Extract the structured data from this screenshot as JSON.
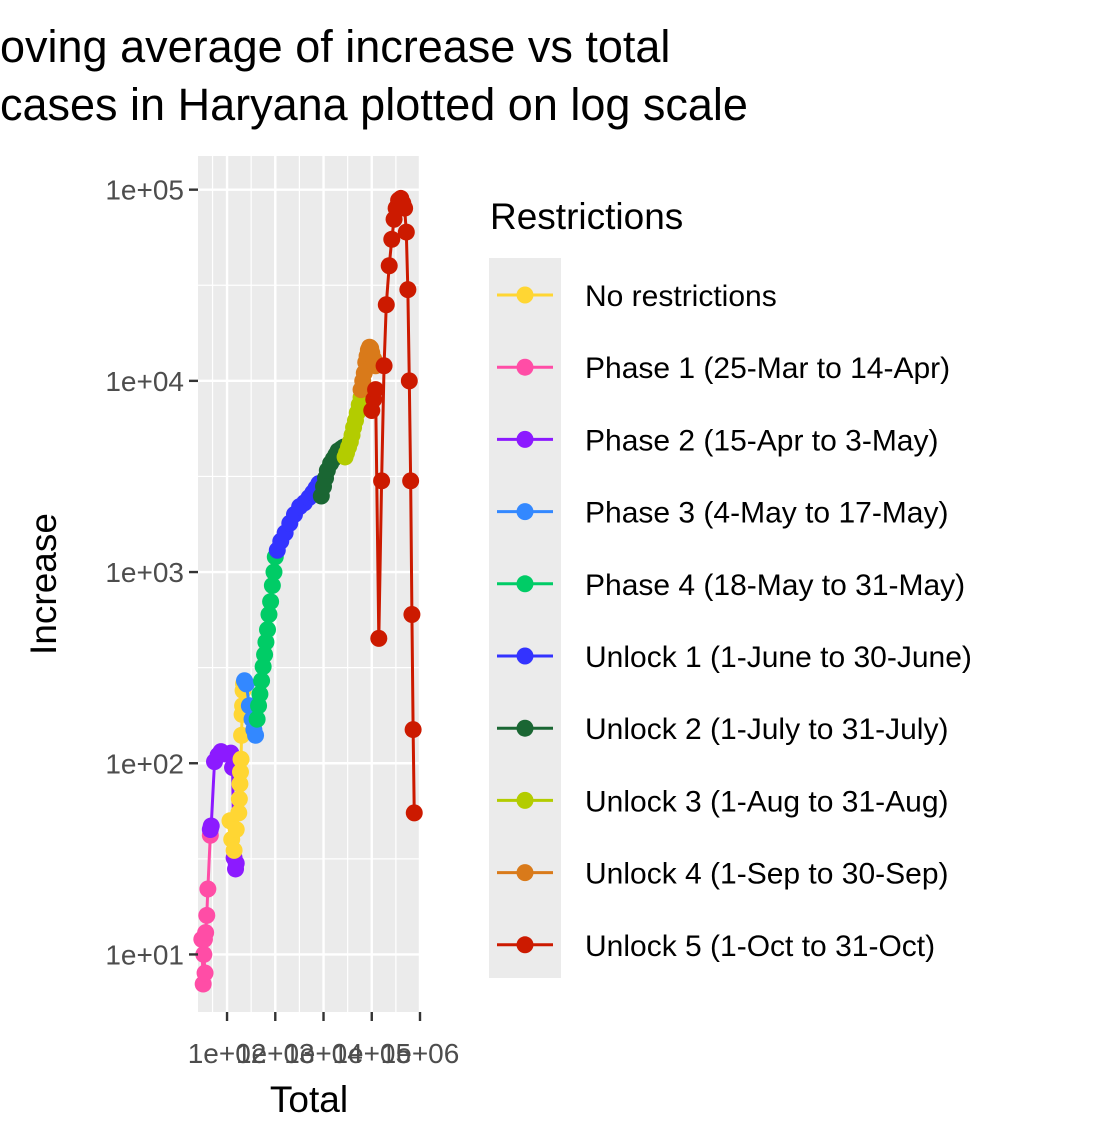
{
  "chart_data": {
    "type": "line",
    "title_lines": [
      "oving average of increase vs total",
      "cases in Haryana plotted on log scale"
    ],
    "xlabel": "Total",
    "ylabel": "Increase",
    "x_scale": "log10",
    "y_scale": "log10",
    "xlim": [
      25,
      1000000
    ],
    "ylim": [
      5,
      150000
    ],
    "x_ticks": [
      100,
      1000,
      10000,
      100000,
      1000000
    ],
    "x_tick_labels": [
      "1e+02",
      "1e+03",
      "1e+04",
      "1e+05",
      "1e+06"
    ],
    "y_ticks": [
      10,
      100,
      1000,
      10000,
      100000
    ],
    "y_tick_labels": [
      "1e+01",
      "1e+02",
      "1e+03",
      "1e+04",
      "1e+05"
    ],
    "grid": true,
    "legend_position": "right",
    "legend": {
      "title": "Restrictions",
      "items": [
        {
          "label": "No restrictions",
          "color": "#FFD633"
        },
        {
          "label": "Phase 1 (25-Mar to 14-Apr)",
          "color": "#FF4DA6"
        },
        {
          "label": "Phase 2 (15-Apr to 3-May)",
          "color": "#8C1AFF"
        },
        {
          "label": "Phase 3 (4-May to 17-May)",
          "color": "#3388FF"
        },
        {
          "label": "Phase 4 (18-May to 31-May)",
          "color": "#00CC66"
        },
        {
          "label": "Unlock 1 (1-June to 30-June)",
          "color": "#3333FF"
        },
        {
          "label": "Unlock 2 (1-July to 31-July)",
          "color": "#1A6633"
        },
        {
          "label": "Unlock 3 (1-Aug to 31-Aug)",
          "color": "#B3CC00"
        },
        {
          "label": "Unlock 4 (1-Sep to 30-Sep)",
          "color": "#D97A1A"
        },
        {
          "label": "Unlock 5 (1-Oct to 31-Oct)",
          "color": "#CC1A00"
        }
      ]
    },
    "series": [
      {
        "name": "Phase 1 (25-Mar to 14-Apr)",
        "color": "#FF4DA6",
        "x": [
          30,
          32,
          35,
          33,
          34,
          36,
          38,
          40,
          45
        ],
        "y": [
          12,
          7,
          8,
          10,
          12,
          13,
          16,
          22,
          42
        ]
      },
      {
        "name": "Phase 2 (15-Apr to 3-May)",
        "color": "#8C1AFF",
        "x": [
          45,
          47,
          55,
          65,
          75,
          90,
          120,
          130,
          140,
          150,
          155
        ],
        "y": [
          45,
          47,
          102,
          110,
          115,
          112,
          113,
          95,
          32,
          28,
          30
        ]
      },
      {
        "name": "No restrictions",
        "color": "#FFD633",
        "x": [
          115,
          125,
          140,
          155,
          175,
          180,
          185,
          190,
          195,
          200,
          205,
          210,
          215,
          220
        ],
        "y": [
          50,
          40,
          35,
          45,
          55,
          65,
          78,
          90,
          105,
          140,
          180,
          200,
          240,
          260
        ]
      },
      {
        "name": "Phase 3 (4-May to 17-May)",
        "color": "#3388FF",
        "x": [
          230,
          250,
          290,
          330,
          360,
          390
        ],
        "y": [
          270,
          260,
          200,
          170,
          150,
          140
        ]
      },
      {
        "name": "Phase 4 (18-May to 31-May)",
        "color": "#00CC66",
        "x": [
          420,
          450,
          480,
          520,
          560,
          600,
          640,
          690,
          740,
          800,
          870,
          940,
          1000
        ],
        "y": [
          170,
          200,
          230,
          270,
          320,
          370,
          430,
          500,
          600,
          700,
          850,
          1000,
          1200
        ]
      },
      {
        "name": "Unlock 1 (1-June to 30-June)",
        "color": "#3333FF",
        "x": [
          1100,
          1300,
          1600,
          2000,
          2500,
          3200,
          4000,
          5000,
          6000,
          7000,
          8000
        ],
        "y": [
          1300,
          1450,
          1600,
          1800,
          2000,
          2200,
          2300,
          2450,
          2600,
          2750,
          2900
        ]
      },
      {
        "name": "Unlock 2 (1-July to 31-July)",
        "color": "#1A6633",
        "x": [
          9000,
          10000,
          11000,
          12000,
          14000,
          16000,
          18000,
          20000,
          23000,
          26000
        ],
        "y": [
          2500,
          2800,
          3100,
          3400,
          3700,
          3900,
          4100,
          4300,
          4400,
          4500
        ]
      },
      {
        "name": "Unlock 3 (1-Aug to 31-Aug)",
        "color": "#B3CC00",
        "x": [
          28000,
          30000,
          33000,
          36000,
          39000,
          42000,
          46000,
          50000,
          55000,
          60000
        ],
        "y": [
          4000,
          4200,
          4500,
          4800,
          5200,
          5700,
          6200,
          6800,
          7500,
          8200
        ]
      },
      {
        "name": "Unlock 4 (1-Sep to 30-Sep)",
        "color": "#D97A1A",
        "x": [
          60000,
          65000,
          70000,
          75000,
          80000,
          85000,
          90000,
          95000,
          100000,
          110000,
          120000
        ],
        "y": [
          9000,
          10000,
          11000,
          12500,
          13500,
          14500,
          15000,
          14800,
          14000,
          13000,
          12000
        ]
      },
      {
        "name": "Unlock 5 (1-Oct to 31-Oct)",
        "color": "#CC1A00",
        "x": [
          100000,
          110000,
          120000,
          140000,
          160000,
          180000,
          200000,
          230000,
          260000,
          290000,
          320000,
          360000,
          400000,
          440000,
          480000,
          520000,
          560000,
          600000,
          640000,
          680000,
          720000,
          760000
        ],
        "y": [
          7000,
          8000,
          9000,
          450,
          3000,
          12000,
          25000,
          40000,
          55000,
          70000,
          80000,
          88000,
          90000,
          85000,
          80000,
          60000,
          30000,
          10000,
          3000,
          600,
          150,
          55
        ]
      }
    ]
  }
}
